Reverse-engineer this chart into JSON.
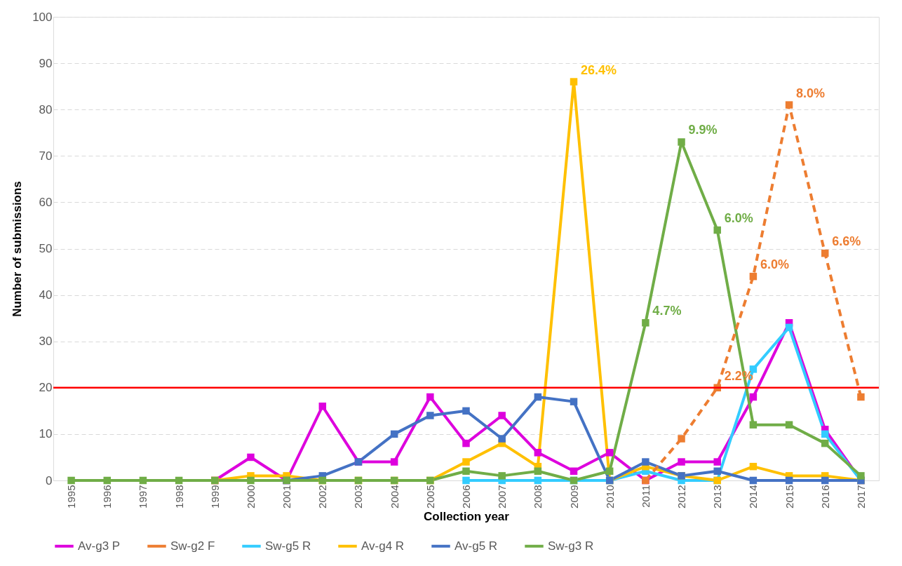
{
  "chart_data": {
    "type": "line",
    "xlabel": "Collection year",
    "ylabel": "Number of submissions",
    "categories": [
      "1995",
      "1996",
      "1997",
      "1998",
      "1999",
      "2000",
      "2001",
      "2002",
      "2003",
      "2004",
      "2005",
      "2006",
      "2007",
      "2008",
      "2009",
      "2010",
      "2011",
      "2012",
      "2013",
      "2014",
      "2015",
      "2016",
      "2017"
    ],
    "series": [
      {
        "name": "Av-g3 P",
        "color": "#dd00dd",
        "values": [
          null,
          null,
          null,
          null,
          0,
          5,
          0,
          16,
          4,
          4,
          18,
          8,
          14,
          6,
          2,
          6,
          0,
          4,
          4,
          18,
          34,
          11,
          0
        ]
      },
      {
        "name": "Sw-g2 F",
        "color": "#ed7d31",
        "line_style": "dashed",
        "values": [
          null,
          null,
          null,
          null,
          null,
          null,
          null,
          null,
          null,
          null,
          null,
          null,
          null,
          null,
          null,
          null,
          0,
          9,
          20,
          44,
          81,
          49,
          18
        ]
      },
      {
        "name": "Sw-g5 R",
        "color": "#33ccff",
        "values": [
          null,
          null,
          null,
          null,
          null,
          null,
          null,
          null,
          null,
          null,
          null,
          0,
          0,
          0,
          0,
          0,
          2,
          0,
          0,
          24,
          33,
          10,
          0
        ]
      },
      {
        "name": "Av-g4 R",
        "color": "#ffc000",
        "values": [
          null,
          null,
          null,
          null,
          0,
          1,
          1,
          0,
          0,
          0,
          0,
          4,
          8,
          3,
          86,
          0,
          3,
          1,
          0,
          3,
          1,
          1,
          0
        ]
      },
      {
        "name": "Av-g5 R",
        "color": "#4472c4",
        "values": [
          null,
          null,
          null,
          null,
          null,
          null,
          0,
          1,
          4,
          10,
          14,
          15,
          9,
          18,
          17,
          0,
          4,
          1,
          2,
          0,
          0,
          0,
          0
        ]
      },
      {
        "name": "Sw-g3 R",
        "color": "#70ad47",
        "values": [
          0,
          0,
          0,
          0,
          0,
          0,
          0,
          0,
          0,
          0,
          0,
          2,
          1,
          2,
          0,
          2,
          34,
          73,
          54,
          12,
          12,
          8,
          1
        ]
      }
    ],
    "annotations": [
      {
        "text": "26.4%",
        "x": "2009",
        "y": 86
      },
      {
        "text": "4.7%",
        "x": "2011",
        "y": 34
      },
      {
        "text": "9.9%",
        "x": "2012",
        "y": 73
      },
      {
        "text": "6.0%",
        "x": "2013",
        "y": 54
      },
      {
        "text": "2.2%",
        "x": "2013",
        "y": 20
      },
      {
        "text": "6.0%",
        "x": "2014",
        "y": 44
      },
      {
        "text": "8.0%",
        "x": "2015",
        "y": 81
      },
      {
        "text": "6.6%",
        "x": "2016",
        "y": 49
      }
    ],
    "ref_lines": [
      {
        "axis": "y",
        "value": 20,
        "color": "#ff0000"
      }
    ],
    "ylim": [
      0,
      100
    ],
    "yticks": [
      0,
      10,
      20,
      30,
      40,
      50,
      60,
      70,
      80,
      90,
      100
    ],
    "grid": "y",
    "legend": "bottom",
    "marker": "square",
    "line_style": "solid"
  }
}
